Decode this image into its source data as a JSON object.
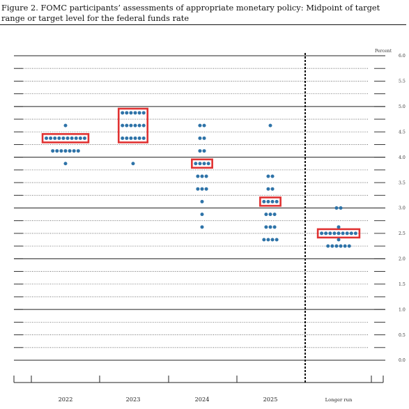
{
  "figure": {
    "title": "Figure 2.  FOMC participants’ assessments of appropriate monetary policy:  Midpoint of target range or target level for the federal funds rate"
  },
  "chart_data": {
    "type": "scatter",
    "title": "FOMC participants’ assessments of appropriate monetary policy: Midpoint of target range or target level for the federal funds rate",
    "ylabel": "Percent",
    "ylim": [
      0,
      6
    ],
    "y_ticks": [
      "0.0",
      "0.5",
      "1.0",
      "1.5",
      "2.0",
      "2.5",
      "3.0",
      "3.5",
      "4.0",
      "4.5",
      "5.0",
      "5.5",
      "6.0"
    ],
    "grid": true,
    "categories": [
      "2022",
      "2023",
      "2024",
      "2025",
      "Longer run"
    ],
    "dots": [
      {
        "category": "2022",
        "counts": [
          {
            "y": 4.625,
            "n": 1
          },
          {
            "y": 4.375,
            "n": 10
          },
          {
            "y": 4.125,
            "n": 7
          },
          {
            "y": 3.875,
            "n": 1
          }
        ]
      },
      {
        "category": "2023",
        "counts": [
          {
            "y": 4.875,
            "n": 6
          },
          {
            "y": 4.625,
            "n": 6
          },
          {
            "y": 4.375,
            "n": 6
          },
          {
            "y": 3.875,
            "n": 1
          }
        ]
      },
      {
        "category": "2024",
        "counts": [
          {
            "y": 4.625,
            "n": 2
          },
          {
            "y": 4.375,
            "n": 2
          },
          {
            "y": 4.125,
            "n": 2
          },
          {
            "y": 3.875,
            "n": 4
          },
          {
            "y": 3.625,
            "n": 3
          },
          {
            "y": 3.375,
            "n": 3
          },
          {
            "y": 3.125,
            "n": 1
          },
          {
            "y": 2.875,
            "n": 1
          },
          {
            "y": 2.625,
            "n": 1
          }
        ]
      },
      {
        "category": "2025",
        "counts": [
          {
            "y": 4.625,
            "n": 1
          },
          {
            "y": 3.625,
            "n": 2
          },
          {
            "y": 3.375,
            "n": 2
          },
          {
            "y": 3.125,
            "n": 4
          },
          {
            "y": 2.875,
            "n": 3
          },
          {
            "y": 2.625,
            "n": 3
          },
          {
            "y": 2.375,
            "n": 4
          }
        ]
      },
      {
        "category": "Longer run",
        "counts": [
          {
            "y": 3.0,
            "n": 2
          },
          {
            "y": 2.625,
            "n": 1
          },
          {
            "y": 2.5,
            "n": 9
          },
          {
            "y": 2.375,
            "n": 1
          },
          {
            "y": 2.25,
            "n": 6
          }
        ]
      }
    ],
    "medians": [
      {
        "category": "2022",
        "y": 4.375
      },
      {
        "category": "2023",
        "y": 4.625
      },
      {
        "category": "2024",
        "y": 3.875
      },
      {
        "category": "2025",
        "y": 3.125
      },
      {
        "category": "Longer run",
        "y": 2.5
      }
    ],
    "colors": {
      "dot": "#2e73a8",
      "median_box": "#e03232",
      "grid": "#555555",
      "divider": "#111111"
    }
  }
}
